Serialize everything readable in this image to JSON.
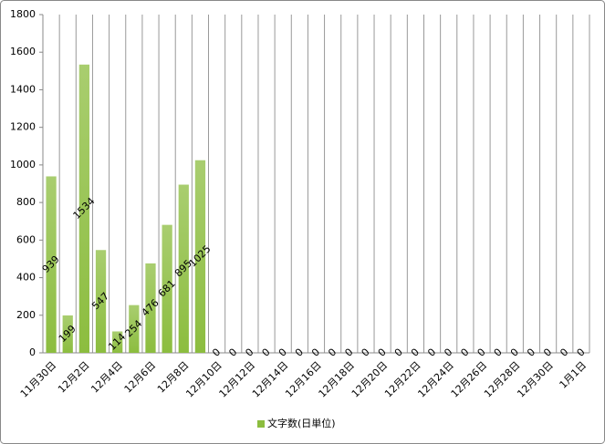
{
  "chart_data": {
    "type": "bar",
    "categories": [
      "11月30日",
      null,
      "12月2日",
      null,
      "12月4日",
      null,
      "12月6日",
      null,
      "12月8日",
      null,
      "12月10日",
      null,
      "12月12日",
      null,
      "12月14日",
      null,
      "12月16日",
      null,
      "12月18日",
      null,
      "12月20日",
      null,
      "12月22日",
      null,
      "12月24日",
      null,
      "12月26日",
      null,
      "12月28日",
      null,
      "12月30日",
      null,
      "1月1日"
    ],
    "series": [
      {
        "name": "文字数(日単位)",
        "color": "#8cbd3f",
        "values": [
          939,
          199,
          1534,
          547,
          114,
          254,
          476,
          681,
          895,
          1025,
          0,
          0,
          0,
          0,
          0,
          0,
          0,
          0,
          0,
          0,
          0,
          0,
          0,
          0,
          0,
          0,
          0,
          0,
          0,
          0,
          0,
          0,
          0
        ]
      }
    ],
    "ylim": [
      0,
      1800
    ],
    "yticks": [
      0,
      200,
      400,
      600,
      800,
      1000,
      1200,
      1400,
      1600,
      1800
    ],
    "grid": "vertical",
    "legend": "bottom"
  }
}
